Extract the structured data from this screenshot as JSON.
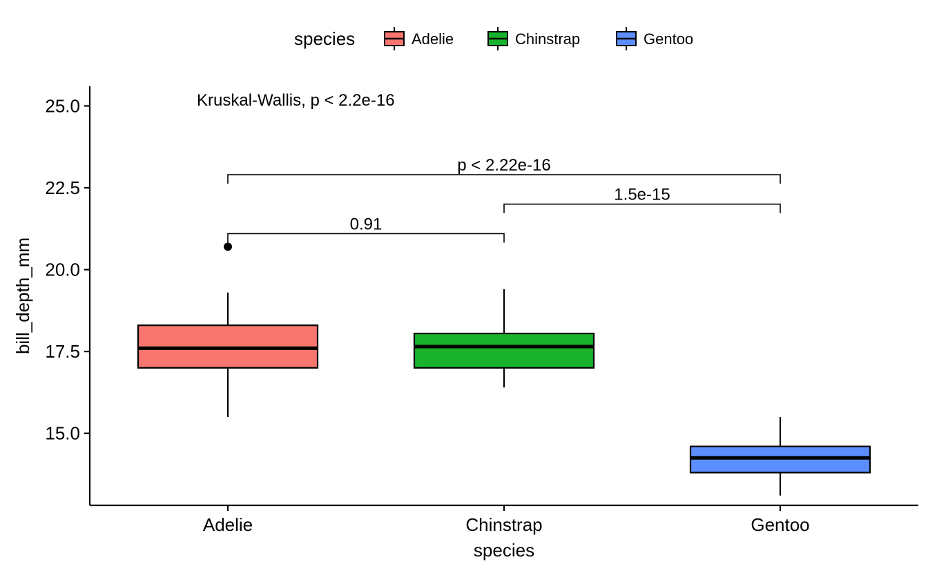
{
  "chart_data": {
    "type": "boxplot",
    "xlabel": "species",
    "ylabel": "bill_depth_mm",
    "ylim": [
      12.8,
      25.6
    ],
    "y_ticks": [
      15.0,
      17.5,
      20.0,
      22.5,
      25.0
    ],
    "y_tick_labels": [
      "15.0",
      "17.5",
      "20.0",
      "22.5",
      "25.0"
    ],
    "categories": [
      "Adelie",
      "Chinstrap",
      "Gentoo"
    ],
    "legend": {
      "title": "species",
      "position": "top",
      "entries": [
        "Adelie",
        "Chinstrap",
        "Gentoo"
      ]
    },
    "colors": {
      "Adelie": "#F8766D",
      "Chinstrap": "#19B22C",
      "Gentoo": "#5C8EFF"
    },
    "boxes": [
      {
        "category": "Adelie",
        "min": 15.5,
        "q1": 17.0,
        "median": 17.6,
        "q3": 18.3,
        "max": 19.3,
        "outliers": [
          20.7
        ]
      },
      {
        "category": "Chinstrap",
        "min": 16.4,
        "q1": 17.0,
        "median": 17.65,
        "q3": 18.05,
        "max": 19.4,
        "outliers": []
      },
      {
        "category": "Gentoo",
        "min": 13.1,
        "q1": 13.8,
        "median": 14.25,
        "q3": 14.6,
        "max": 15.5,
        "outliers": []
      }
    ],
    "global_test": {
      "text": "Kruskal-Wallis, p < 2.2e-16",
      "y": 25.2
    },
    "comparisons": [
      {
        "group1": "Adelie",
        "group2": "Chinstrap",
        "label": "0.91",
        "y": 21.1
      },
      {
        "group1": "Chinstrap",
        "group2": "Gentoo",
        "label": "1.5e-15",
        "y": 22.0
      },
      {
        "group1": "Adelie",
        "group2": "Gentoo",
        "label": "p < 2.22e-16",
        "y": 22.9
      }
    ]
  }
}
